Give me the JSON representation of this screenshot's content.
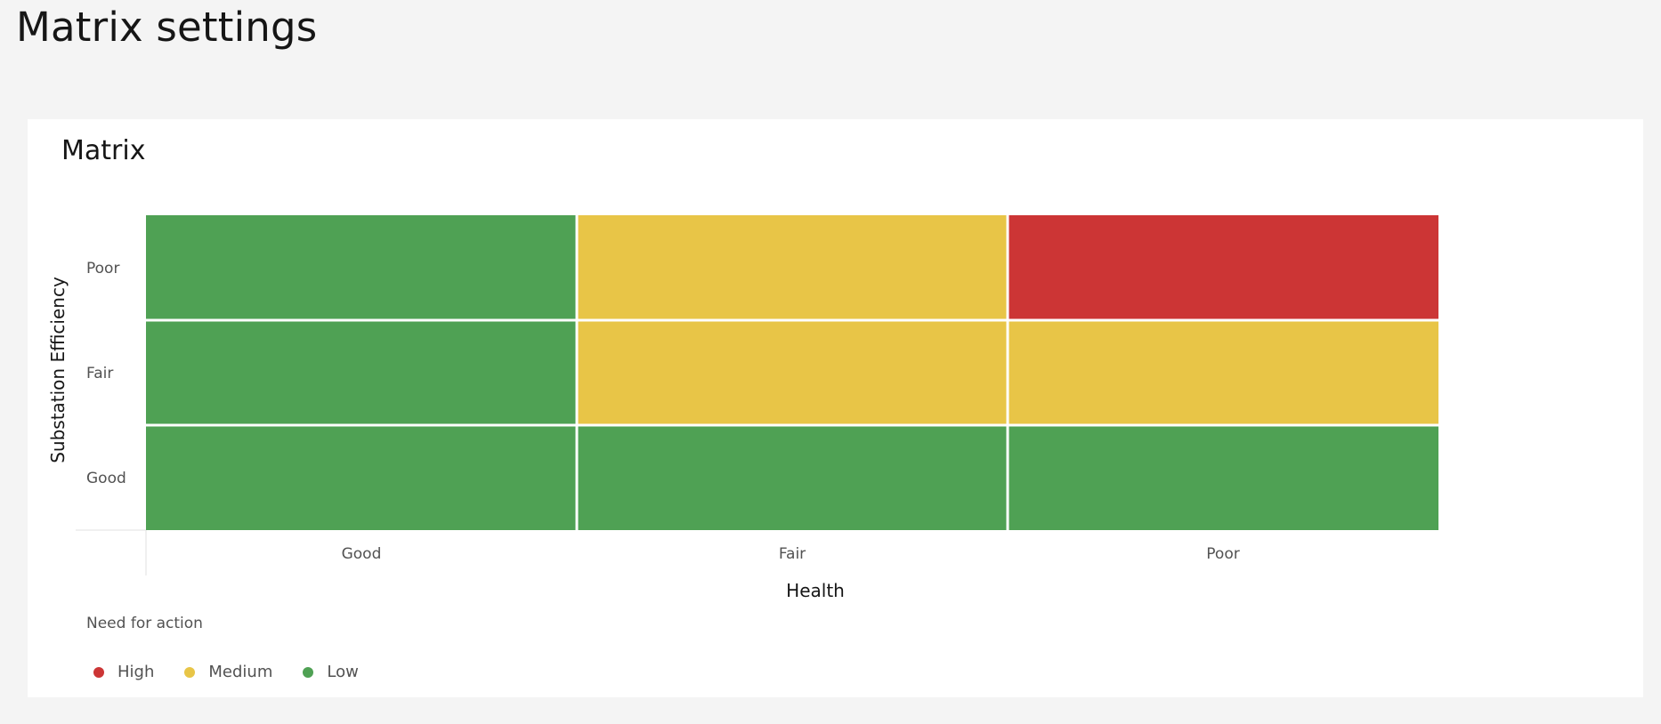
{
  "page": {
    "title": "Matrix settings"
  },
  "card": {
    "title": "Matrix"
  },
  "chart_data": {
    "type": "heatmap",
    "title": "Matrix",
    "xlabel": "Health",
    "ylabel": "Substation Efficiency",
    "x_categories": [
      "Good",
      "Fair",
      "Poor"
    ],
    "y_categories": [
      "Poor",
      "Fair",
      "Good"
    ],
    "cells": [
      [
        "Low",
        "Medium",
        "High"
      ],
      [
        "Low",
        "Medium",
        "Medium"
      ],
      [
        "Low",
        "Low",
        "Low"
      ]
    ],
    "colors": {
      "High": "#cc3535",
      "Medium": "#e8c547",
      "Low": "#4fa154"
    }
  },
  "legend": {
    "title": "Need for action",
    "items": [
      {
        "label": "High",
        "color": "#cc3535"
      },
      {
        "label": "Medium",
        "color": "#e8c547"
      },
      {
        "label": "Low",
        "color": "#4fa154"
      }
    ]
  }
}
